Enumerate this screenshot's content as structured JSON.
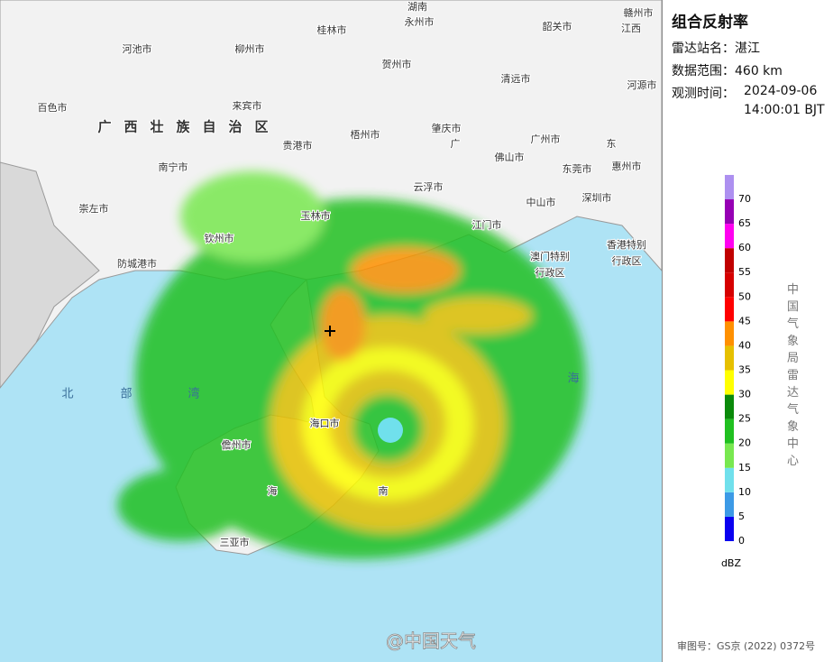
{
  "panel": {
    "title": "组合反射率",
    "station_label": "雷达站名：",
    "station": "湛江",
    "range_label": "数据范围：",
    "range": "460 km",
    "time_label": "观测时间：",
    "date": "2024-09-06",
    "time": "14:00:01 BJT",
    "legend_unit": "dBZ",
    "legend": [
      {
        "value": 0,
        "color": "#0a00f0"
      },
      {
        "value": 5,
        "color": "#3c9ae6"
      },
      {
        "value": 10,
        "color": "#70e0ec"
      },
      {
        "value": 15,
        "color": "#78e850"
      },
      {
        "value": 20,
        "color": "#20c020"
      },
      {
        "value": 25,
        "color": "#0a8a0a"
      },
      {
        "value": 30,
        "color": "#ffff00"
      },
      {
        "value": 35,
        "color": "#e6c000"
      },
      {
        "value": 40,
        "color": "#ff9000"
      },
      {
        "value": 45,
        "color": "#ff0000"
      },
      {
        "value": 50,
        "color": "#d60000"
      },
      {
        "value": 55,
        "color": "#c00000"
      },
      {
        "value": 60,
        "color": "#ff00f0"
      },
      {
        "value": 65,
        "color": "#9600b4"
      },
      {
        "value": 70,
        "color": "#ad90f0"
      }
    ],
    "source": "中国气象局雷达气象中心",
    "approval": "审图号：GS京 (2022) 0372号"
  },
  "map": {
    "labels": [
      "湖南",
      "永州市",
      "赣州市",
      "江西",
      "河池市",
      "柳州市",
      "桂林市",
      "贺州市",
      "韶关市",
      "清远市",
      "河源市",
      "百色市",
      "来宾市",
      "广西壮族自治区",
      "梧州市",
      "肇庆市",
      "广州市",
      "广",
      "东",
      "贵港市",
      "南宁市",
      "佛山市",
      "东莞市",
      "惠州市",
      "云浮市",
      "中山市",
      "深圳市",
      "崇左市",
      "玉林市",
      "江门市",
      "钦州市",
      "香港特别",
      "行政区",
      "澳门特别",
      "行政区",
      "防城港市",
      "北",
      "部",
      "湾",
      "海口市",
      "儋州市",
      "海",
      "南",
      "三亚市",
      "海"
    ],
    "watermark": "@中国天气"
  }
}
